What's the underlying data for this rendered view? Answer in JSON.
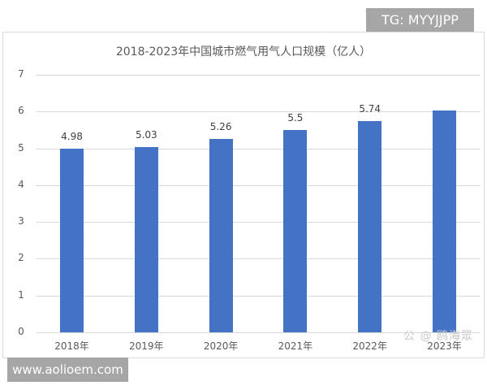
{
  "chart_data": {
    "type": "bar",
    "title": "2018-2023年中国城市燃气用气人口规模（亿人）",
    "categories": [
      "2018年",
      "2019年",
      "2020年",
      "2021年",
      "2022年",
      "2023年"
    ],
    "values": [
      4.98,
      5.03,
      5.26,
      5.5,
      5.74,
      6.03
    ],
    "data_labels": [
      "4.98",
      "5.03",
      "5.26",
      "5.5",
      "5.74",
      ""
    ],
    "xlabel": "",
    "ylabel": "",
    "ylim": [
      0,
      7
    ],
    "yticks": [
      "0",
      "1",
      "2",
      "3",
      "4",
      "5",
      "6",
      "7"
    ],
    "grid": true,
    "legend": "none",
    "bar_color": "#4472c4"
  },
  "watermarks": {
    "top_right": "TG: MYYJJPP",
    "bottom_left": "www.aolioem.com",
    "overlay_logo": "公 @ 鸥海眾"
  }
}
